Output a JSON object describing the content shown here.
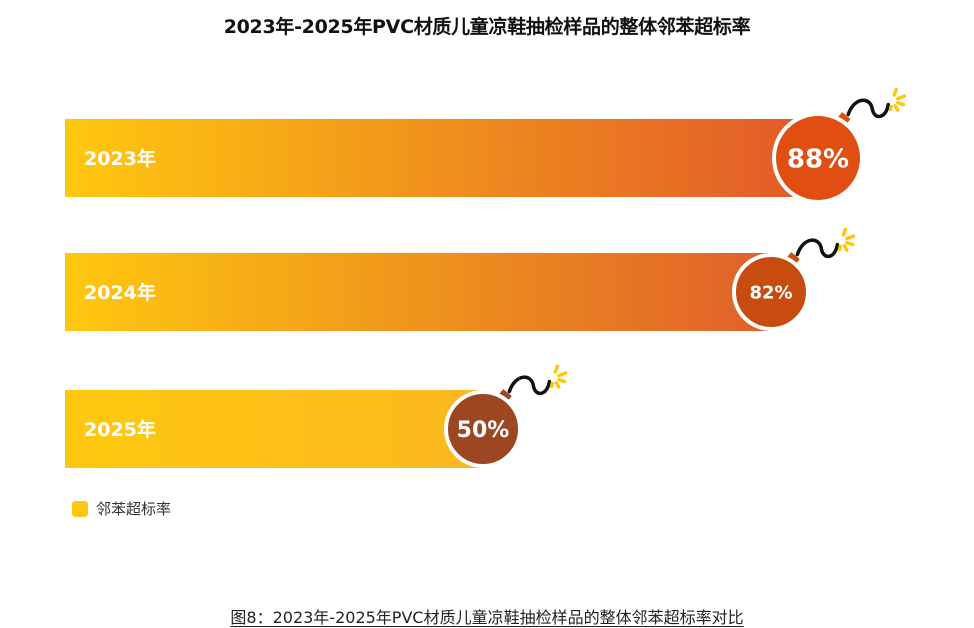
{
  "chart_data": {
    "type": "bar",
    "orientation": "horizontal",
    "title": "2023年-2025年PVC材质儿童凉鞋抽检样品的整体邻苯超标率",
    "categories": [
      "2023年",
      "2024年",
      "2025年"
    ],
    "series": [
      {
        "name": "邻苯超标率",
        "values": [
          88,
          82,
          50
        ]
      }
    ],
    "value_labels": [
      "88%",
      "82%",
      "50%"
    ],
    "unit": "%",
    "xlim": [
      0,
      100
    ],
    "grid": false,
    "legend": "bottom-left",
    "colors": {
      "bar_gradient_start": "#ffc80f",
      "bar_gradient_end_2023": "#e2582a",
      "bar_gradient_end_2024": "#e0602a",
      "bar_gradient_end_2025": "#fbb820",
      "bomb_2023": "#e04e12",
      "bomb_2024": "#c84c10",
      "bomb_2025": "#9c4622",
      "spark": "#ffc70f",
      "legend_swatch": "#ffc70f"
    }
  },
  "legend": {
    "label": "邻苯超标率"
  },
  "caption": "图8：2023年-2025年PVC材质儿童凉鞋抽检样品的整体邻苯超标率对比"
}
